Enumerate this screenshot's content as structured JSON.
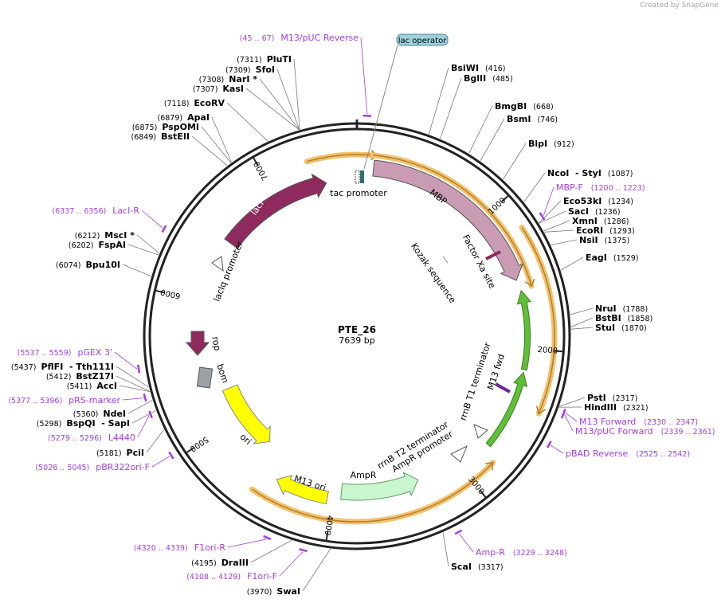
{
  "watermark": "Created by SnapGene",
  "plasmid": {
    "name": "PTE_26",
    "length": 7639,
    "length_label": "7639 bp"
  },
  "colors": {
    "ring": "#222222",
    "primer": "#a23ce0",
    "lacI": "#8e2a5e",
    "mbp": "#c99cb4",
    "ori": "#ffff00",
    "ampR": "#c9f5cf",
    "terminator": "#5fbf3a",
    "orf_glow": "#f4c06a",
    "orf_line": "#b0802d",
    "bom": "#9aa0a6",
    "tag": "#9fd1db"
  },
  "ticks": [
    {
      "pos": 1000,
      "label": "1000"
    },
    {
      "pos": 2000,
      "label": "2000"
    },
    {
      "pos": 3000,
      "label": "3000"
    },
    {
      "pos": 4000,
      "label": "4000"
    },
    {
      "pos": 5000,
      "label": "5000"
    },
    {
      "pos": 6000,
      "label": "6000"
    },
    {
      "pos": 7000,
      "label": "7000"
    }
  ],
  "sites": [
    {
      "name": "BsiWI",
      "pos_label": "(416)",
      "pos": 416
    },
    {
      "name": "BglII",
      "pos_label": "(485)",
      "pos": 485
    },
    {
      "name": "BmgBI",
      "pos_label": "(668)",
      "pos": 668
    },
    {
      "name": "BsmI",
      "pos_label": "(746)",
      "pos": 746
    },
    {
      "name": "BlpI",
      "pos_label": "(912)",
      "pos": 912
    },
    {
      "name": "NcoI  - StyI",
      "pos_label": "(1087)",
      "pos": 1087
    },
    {
      "name": "Eco53kI",
      "pos_label": "(1234)",
      "pos": 1234
    },
    {
      "name": "SacI",
      "pos_label": "(1236)",
      "pos": 1236
    },
    {
      "name": "XmnI",
      "pos_label": "(1286)",
      "pos": 1286
    },
    {
      "name": "EcoRI",
      "pos_label": "(1293)",
      "pos": 1293
    },
    {
      "name": "NsiI",
      "pos_label": "(1375)",
      "pos": 1375
    },
    {
      "name": "EagI",
      "pos_label": "(1529)",
      "pos": 1529
    },
    {
      "name": "NruI",
      "pos_label": "(1788)",
      "pos": 1788
    },
    {
      "name": "BstBI",
      "pos_label": "(1858)",
      "pos": 1858
    },
    {
      "name": "StuI",
      "pos_label": "(1870)",
      "pos": 1870
    },
    {
      "name": "PstI",
      "pos_label": "(2317)",
      "pos": 2317
    },
    {
      "name": "HindIII",
      "pos_label": "(2321)",
      "pos": 2321
    },
    {
      "name": "ScaI",
      "pos_label": "(3317)",
      "pos": 3317
    },
    {
      "name": "SwaI",
      "pos_label": "(3970)",
      "pos": 3970
    },
    {
      "name": "DraIII",
      "pos_label": "(4195)",
      "pos": 4195
    },
    {
      "name": "PciI",
      "pos_label": "(5181)",
      "pos": 5181
    },
    {
      "name": "BspQI  - SapI",
      "pos_label": "(5298)",
      "pos": 5298
    },
    {
      "name": "NdeI",
      "pos_label": "(5360)",
      "pos": 5360
    },
    {
      "name": "AccI",
      "pos_label": "(5411)",
      "pos": 5411
    },
    {
      "name": "BstZ17I",
      "pos_label": "(5412)",
      "pos": 5412
    },
    {
      "name": "PflFI  - Tth111I",
      "pos_label": "(5437)",
      "pos": 5437
    },
    {
      "name": "Bpu10I",
      "pos_label": "(6074)",
      "pos": 6074
    },
    {
      "name": "FspAI",
      "pos_label": "(6202)",
      "pos": 6202
    },
    {
      "name": "MscI *",
      "pos_label": "(6212)",
      "pos": 6212
    },
    {
      "name": "BstEII",
      "pos_label": "(6849)",
      "pos": 6849
    },
    {
      "name": "PspOMI",
      "pos_label": "(6875)",
      "pos": 6875
    },
    {
      "name": "ApaI",
      "pos_label": "(6879)",
      "pos": 6879
    },
    {
      "name": "EcoRV",
      "pos_label": "(7118)",
      "pos": 7118
    },
    {
      "name": "KasI",
      "pos_label": "(7307)",
      "pos": 7307
    },
    {
      "name": "NarI *",
      "pos_label": "(7308)",
      "pos": 7308
    },
    {
      "name": "SfoI",
      "pos_label": "(7309)",
      "pos": 7309
    },
    {
      "name": "PluTI",
      "pos_label": "(7311)",
      "pos": 7311
    }
  ],
  "primers": [
    {
      "name": "M13/pUC Reverse",
      "range_label": "(45 .. 67)",
      "start": 45,
      "end": 67
    },
    {
      "name": "MBP-F",
      "range_label": "(1200 .. 1223)",
      "start": 1200,
      "end": 1223
    },
    {
      "name": "M13 Forward",
      "range_label": "(2330 .. 2347)",
      "start": 2330,
      "end": 2347
    },
    {
      "name": "M13/pUC Forward",
      "range_label": "(2339 .. 2361)",
      "start": 2339,
      "end": 2361
    },
    {
      "name": "pBAD Reverse",
      "range_label": "(2525 .. 2542)",
      "start": 2525,
      "end": 2542
    },
    {
      "name": "Amp-R",
      "range_label": "(3229 .. 3248)",
      "start": 3229,
      "end": 3248
    },
    {
      "name": "F1ori-F",
      "range_label": "(4108 .. 4129)",
      "start": 4108,
      "end": 4129
    },
    {
      "name": "F1ori-R",
      "range_label": "(4320 .. 4339)",
      "start": 4320,
      "end": 4339
    },
    {
      "name": "pBR322ori-F",
      "range_label": "(5026 .. 5045)",
      "start": 5026,
      "end": 5045
    },
    {
      "name": "L4440",
      "range_label": "(5279 .. 5296)",
      "start": 5279,
      "end": 5296
    },
    {
      "name": "pRS-marker",
      "range_label": "(5377 .. 5396)",
      "start": 5377,
      "end": 5396
    },
    {
      "name": "pGEX 3'",
      "range_label": "(5537 .. 5559)",
      "start": 5537,
      "end": 5559
    },
    {
      "name": "LacI-R",
      "range_label": "(6337 .. 6356)",
      "start": 6337,
      "end": 6356
    }
  ],
  "features": [
    {
      "name": "lac operator",
      "label": "lac operator",
      "kind": "tag"
    },
    {
      "name": "tac promoter",
      "label": "tac promoter"
    },
    {
      "name": "MBP",
      "label": "MBP"
    },
    {
      "name": "Factor Xa site",
      "label": "Factor Xa site"
    },
    {
      "name": "Kozak sequence",
      "label": "Kozak sequence"
    },
    {
      "name": "rrnB T1 terminator",
      "label": "rrnB T1 terminator"
    },
    {
      "name": "M13 fwd",
      "label": "M13 fwd"
    },
    {
      "name": "rrnB T2 terminator",
      "label": "rrnB T2 terminator"
    },
    {
      "name": "AmpR promoter",
      "label": "AmpR promoter"
    },
    {
      "name": "AmpR",
      "label": "AmpR"
    },
    {
      "name": "M13 ori",
      "label": "M13 ori"
    },
    {
      "name": "ori",
      "label": "ori"
    },
    {
      "name": "bom",
      "label": "bom"
    },
    {
      "name": "rop",
      "label": "rop"
    },
    {
      "name": "lacI",
      "label": "lacI"
    },
    {
      "name": "lacIq promoter",
      "label": "lacIq promoter"
    }
  ]
}
